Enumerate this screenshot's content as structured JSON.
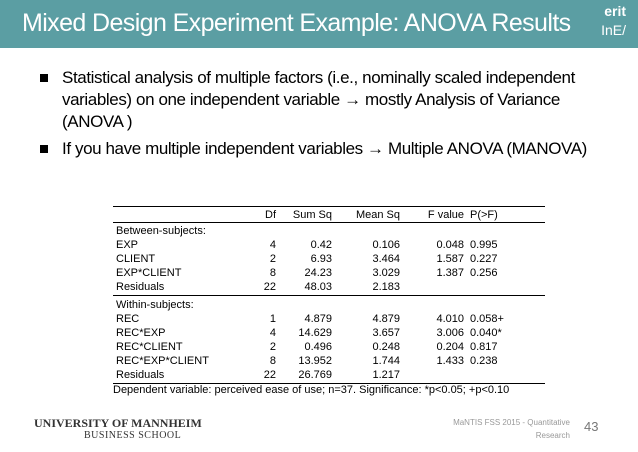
{
  "header": {
    "title": "Mixed Design Experiment Example: ANOVA Results",
    "logo": [
      "erit",
      "InE/"
    ]
  },
  "bullets": [
    "Statistical analysis of multiple factors (i.e., nominally scaled independent variables) on one independent variable → mostly Analysis of Variance (ANOVA )",
    "If you have multiple independent variables → Multiple ANOVA (MANOVA)"
  ],
  "table": {
    "columns": [
      "Df",
      "Sum Sq",
      "Mean Sq",
      "F value",
      "P(>F)"
    ],
    "sections": [
      {
        "label": "Between-subjects:",
        "rows": [
          {
            "label": "EXP",
            "cells": [
              "4",
              "0.42",
              "0.106",
              "0.048",
              "0.995"
            ]
          },
          {
            "label": "CLIENT",
            "cells": [
              "2",
              "6.93",
              "3.464",
              "1.587",
              "0.227"
            ]
          },
          {
            "label": "EXP*CLIENT",
            "cells": [
              "8",
              "24.23",
              "3.029",
              "1.387",
              "0.256"
            ]
          },
          {
            "label": "Residuals",
            "cells": [
              "22",
              "48.03",
              "2.183"
            ]
          }
        ]
      },
      {
        "label": "Within-subjects:",
        "rows": [
          {
            "label": "REC",
            "cells": [
              "1",
              "4.879",
              "4.879",
              "4.010",
              "0.058+"
            ]
          },
          {
            "label": "REC*EXP",
            "cells": [
              "4",
              "14.629",
              "3.657",
              "3.006",
              "0.040*"
            ]
          },
          {
            "label": "REC*CLIENT",
            "cells": [
              "2",
              "0.496",
              "0.248",
              "0.204",
              "0.817"
            ]
          },
          {
            "label": "REC*EXP*CLIENT",
            "cells": [
              "8",
              "13.952",
              "1.744",
              "1.433",
              "0.238"
            ]
          },
          {
            "label": "Residuals",
            "cells": [
              "22",
              "26.769",
              "1.217"
            ]
          }
        ]
      }
    ],
    "caption": "Dependent variable: perceived ease of use;  n=37. Significance:  *p<0.05;  +p<0.10"
  },
  "footer": {
    "university": "UNIVERSITY OF MANNHEIM",
    "school": "BUSINESS SCHOOL",
    "source": "MaNTIS FSS 2015 - Quantitative Research",
    "page": "43"
  }
}
